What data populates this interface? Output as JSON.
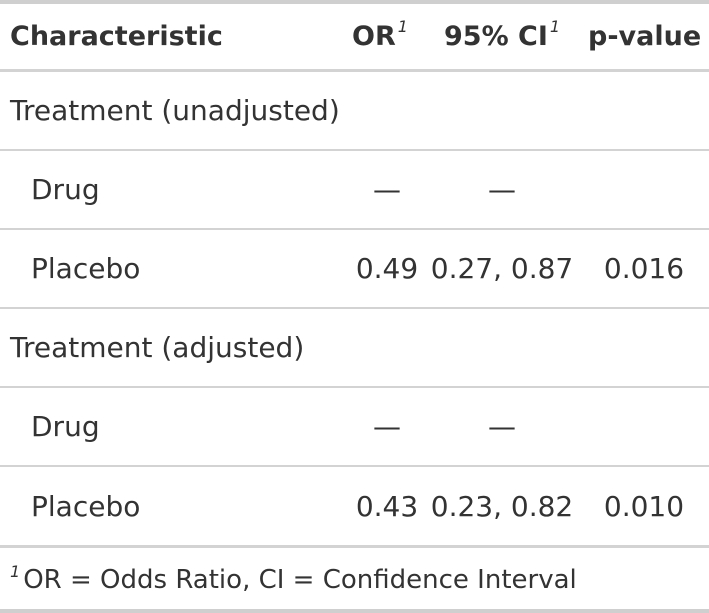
{
  "table": {
    "header": {
      "characteristic": "Characteristic",
      "or": "OR",
      "ci": "95% CI",
      "p": "p-value",
      "footnote_mark": "1"
    },
    "rows": [
      {
        "label": "Treatment (unadjusted)",
        "or": "",
        "ci": "",
        "p": ""
      },
      {
        "label": "Drug",
        "or": "—",
        "ci": "—",
        "p": ""
      },
      {
        "label": "Placebo",
        "or": "0.49",
        "ci": "0.27, 0.87",
        "p": "0.016"
      },
      {
        "label": "Treatment (adjusted)",
        "or": "",
        "ci": "",
        "p": ""
      },
      {
        "label": "Drug",
        "or": "—",
        "ci": "—",
        "p": ""
      },
      {
        "label": "Placebo",
        "or": "0.43",
        "ci": "0.23, 0.82",
        "p": "0.010"
      }
    ],
    "footnote": {
      "mark": "1",
      "text": "OR = Odds Ratio, CI = Confidence Interval"
    }
  }
}
